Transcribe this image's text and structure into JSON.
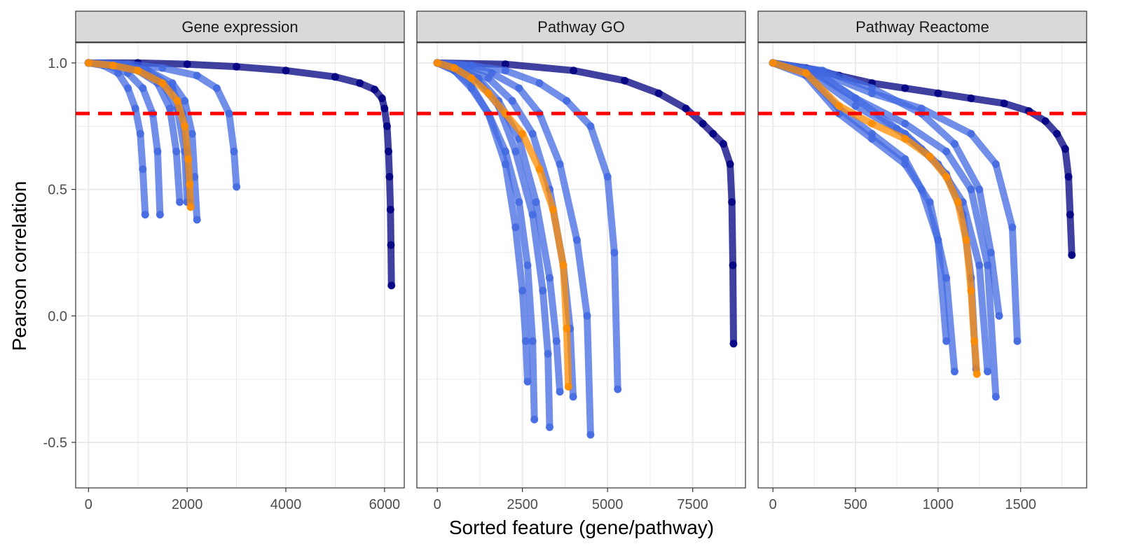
{
  "chart_data": {
    "type": "scatter",
    "xlabel": "Sorted feature (gene/pathway)",
    "ylabel": "Pearson correlation",
    "ylim": [
      -0.68,
      1.08
    ],
    "y_ticks": [
      -0.5,
      0.0,
      0.5,
      1.0
    ],
    "y_tick_labels": [
      "-0.5",
      "0.0",
      "0.5",
      "1.0"
    ],
    "threshold": 0.8,
    "threshold_style": "red dashed horizontal line",
    "colors": {
      "dark_series": "#000080",
      "blue_series": "#4169e1",
      "orange_series": "#ff8c00",
      "threshold": "#ff0000",
      "strip_fill": "#d9d9d9",
      "grid": "#ebebeb"
    },
    "grid": true,
    "legend": "none",
    "panels": [
      {
        "title": "Gene expression",
        "xlim": [
          -260,
          6400
        ],
        "x_ticks": [
          0,
          2000,
          4000,
          6000
        ],
        "x_tick_labels": [
          "0",
          "2000",
          "4000",
          "6000"
        ],
        "series": [
          {
            "color": "dark",
            "x": [
              0,
              1000,
              2000,
              3000,
              4000,
              5000,
              5500,
              5800,
              5950,
              6000,
              6050,
              6080,
              6100,
              6120,
              6130,
              6140
            ],
            "y": [
              1.0,
              1.0,
              0.995,
              0.985,
              0.97,
              0.945,
              0.92,
              0.895,
              0.86,
              0.82,
              0.75,
              0.65,
              0.55,
              0.42,
              0.28,
              0.12
            ]
          },
          {
            "color": "blue",
            "x": [
              0,
              300,
              600,
              800,
              950,
              1050,
              1100,
              1150
            ],
            "y": [
              1.0,
              0.99,
              0.96,
              0.9,
              0.82,
              0.72,
              0.58,
              0.4
            ]
          },
          {
            "color": "blue",
            "x": [
              0,
              400,
              800,
              1100,
              1300,
              1400,
              1450
            ],
            "y": [
              1.0,
              0.99,
              0.96,
              0.9,
              0.8,
              0.65,
              0.4
            ]
          },
          {
            "color": "blue",
            "x": [
              0,
              500,
              1000,
              1400,
              1650,
              1780,
              1850
            ],
            "y": [
              1.0,
              0.995,
              0.97,
              0.92,
              0.82,
              0.65,
              0.45
            ]
          },
          {
            "color": "blue",
            "x": [
              0,
              500,
              1000,
              1500,
              1800,
              1950,
              2000
            ],
            "y": [
              1.0,
              0.995,
              0.97,
              0.92,
              0.82,
              0.65,
              0.45
            ]
          },
          {
            "color": "blue",
            "x": [
              0,
              600,
              1200,
              1700,
              1900,
              2000,
              2050
            ],
            "y": [
              1.0,
              0.995,
              0.97,
              0.9,
              0.8,
              0.65,
              0.45
            ]
          },
          {
            "color": "blue",
            "x": [
              0,
              600,
              1200,
              1700,
              1950,
              2100,
              2150,
              2200
            ],
            "y": [
              1.0,
              0.995,
              0.97,
              0.92,
              0.85,
              0.72,
              0.55,
              0.38
            ]
          },
          {
            "color": "blue",
            "x": [
              0,
              800,
              1500,
              2200,
              2600,
              2850,
              2950,
              3000
            ],
            "y": [
              1.0,
              0.995,
              0.98,
              0.95,
              0.9,
              0.8,
              0.65,
              0.51
            ]
          },
          {
            "color": "orange",
            "x": [
              0,
              500,
              1000,
              1500,
              1800,
              1950,
              2020,
              2050,
              2070
            ],
            "y": [
              1.0,
              0.99,
              0.97,
              0.92,
              0.85,
              0.75,
              0.62,
              0.52,
              0.43
            ]
          }
        ]
      },
      {
        "title": "Pathway GO",
        "xlim": [
          -600,
          9050
        ],
        "x_ticks": [
          0,
          2500,
          5000,
          7500
        ],
        "x_tick_labels": [
          "0",
          "2500",
          "5000",
          "7500"
        ],
        "series": [
          {
            "color": "dark",
            "x": [
              0,
              2000,
              4000,
              5500,
              6500,
              7300,
              7800,
              8100,
              8400,
              8600,
              8650,
              8680,
              8700
            ],
            "y": [
              1.0,
              0.995,
              0.97,
              0.93,
              0.88,
              0.82,
              0.76,
              0.72,
              0.68,
              0.6,
              0.45,
              0.2,
              -0.11
            ]
          },
          {
            "color": "blue",
            "x": [
              0,
              500,
              1000,
              1500,
              2000,
              2300,
              2500,
              2600,
              2650
            ],
            "y": [
              1.0,
              0.97,
              0.9,
              0.8,
              0.6,
              0.35,
              0.1,
              -0.1,
              -0.26
            ]
          },
          {
            "color": "blue",
            "x": [
              0,
              500,
              1000,
              1500,
              2000,
              2400,
              2650,
              2800,
              2850
            ],
            "y": [
              1.0,
              0.97,
              0.91,
              0.8,
              0.65,
              0.45,
              0.2,
              -0.1,
              -0.41
            ]
          },
          {
            "color": "blue",
            "x": [
              0,
              600,
              1200,
              1800,
              2300,
              2800,
              3100,
              3250,
              3300
            ],
            "y": [
              1.0,
              0.98,
              0.93,
              0.83,
              0.65,
              0.4,
              0.1,
              -0.15,
              -0.44
            ]
          },
          {
            "color": "blue",
            "x": [
              0,
              600,
              1200,
              1800,
              2400,
              2900,
              3300,
              3500,
              3600
            ],
            "y": [
              1.0,
              0.98,
              0.94,
              0.85,
              0.7,
              0.45,
              0.15,
              -0.1,
              -0.3
            ]
          },
          {
            "color": "blue",
            "x": [
              0,
              700,
              1500,
              2200,
              2800,
              3300,
              3700,
              3900,
              3990
            ],
            "y": [
              1.0,
              0.98,
              0.94,
              0.85,
              0.72,
              0.5,
              0.2,
              -0.05,
              -0.32
            ]
          },
          {
            "color": "blue",
            "x": [
              0,
              800,
              1600,
              2400,
              3000,
              3600,
              4100,
              4400,
              4500
            ],
            "y": [
              1.0,
              0.99,
              0.96,
              0.9,
              0.8,
              0.6,
              0.3,
              0.0,
              -0.47
            ]
          },
          {
            "color": "blue",
            "x": [
              0,
              1000,
              2000,
              3000,
              3800,
              4500,
              5000,
              5200,
              5300
            ],
            "y": [
              1.0,
              0.99,
              0.97,
              0.92,
              0.85,
              0.75,
              0.55,
              0.25,
              -0.29
            ]
          },
          {
            "color": "orange",
            "x": [
              0,
              500,
              1000,
              1500,
              2000,
              2500,
              3000,
              3400,
              3700,
              3800,
              3850
            ],
            "y": [
              1.0,
              0.98,
              0.94,
              0.88,
              0.8,
              0.72,
              0.58,
              0.42,
              0.2,
              -0.05,
              -0.28
            ]
          }
        ]
      },
      {
        "title": "Pathway Reactome",
        "xlim": [
          -90,
          1900
        ],
        "x_ticks": [
          0,
          500,
          1000,
          1500
        ],
        "x_tick_labels": [
          "0",
          "500",
          "1000",
          "1500"
        ],
        "series": [
          {
            "color": "dark",
            "x": [
              0,
              200,
              400,
              600,
              800,
              1000,
              1200,
              1400,
              1550,
              1650,
              1720,
              1770,
              1790,
              1800,
              1810
            ],
            "y": [
              1.0,
              0.98,
              0.95,
              0.92,
              0.9,
              0.88,
              0.86,
              0.84,
              0.81,
              0.77,
              0.72,
              0.66,
              0.55,
              0.4,
              0.24
            ]
          },
          {
            "color": "blue",
            "x": [
              0,
              200,
              400,
              600,
              800,
              950,
              1050,
              1100
            ],
            "y": [
              1.0,
              0.95,
              0.8,
              0.7,
              0.6,
              0.45,
              0.15,
              -0.22
            ]
          },
          {
            "color": "blue",
            "x": [
              0,
              200,
              400,
              600,
              800,
              900,
              1000,
              1050
            ],
            "y": [
              1.0,
              0.96,
              0.82,
              0.72,
              0.62,
              0.5,
              0.3,
              -0.1
            ]
          },
          {
            "color": "blue",
            "x": [
              0,
              250,
              500,
              800,
              1000,
              1150,
              1250,
              1300
            ],
            "y": [
              1.0,
              0.95,
              0.83,
              0.72,
              0.6,
              0.45,
              0.2,
              -0.22
            ]
          },
          {
            "color": "blue",
            "x": [
              0,
              250,
              500,
              800,
              1050,
              1200,
              1300,
              1350
            ],
            "y": [
              1.0,
              0.96,
              0.86,
              0.76,
              0.65,
              0.5,
              0.2,
              -0.32
            ]
          },
          {
            "color": "blue",
            "x": [
              0,
              300,
              600,
              900,
              1200,
              1350,
              1450,
              1480
            ],
            "y": [
              1.0,
              0.96,
              0.88,
              0.82,
              0.72,
              0.6,
              0.35,
              -0.1
            ]
          },
          {
            "color": "blue",
            "x": [
              0,
              300,
              600,
              900,
              1100,
              1250,
              1320,
              1370
            ],
            "y": [
              1.0,
              0.97,
              0.9,
              0.8,
              0.68,
              0.5,
              0.25,
              0.0
            ]
          },
          {
            "color": "blue",
            "x": [
              0,
              250,
              500,
              750,
              900,
              1050,
              1150,
              1200,
              1230
            ],
            "y": [
              1.0,
              0.97,
              0.86,
              0.74,
              0.66,
              0.56,
              0.4,
              0.15,
              -0.21
            ]
          },
          {
            "color": "orange",
            "x": [
              0,
              200,
              400,
              600,
              800,
              950,
              1050,
              1120,
              1170,
              1200,
              1220,
              1235
            ],
            "y": [
              1.0,
              0.96,
              0.83,
              0.76,
              0.7,
              0.63,
              0.55,
              0.45,
              0.3,
              0.1,
              -0.1,
              -0.23
            ]
          }
        ]
      }
    ]
  }
}
